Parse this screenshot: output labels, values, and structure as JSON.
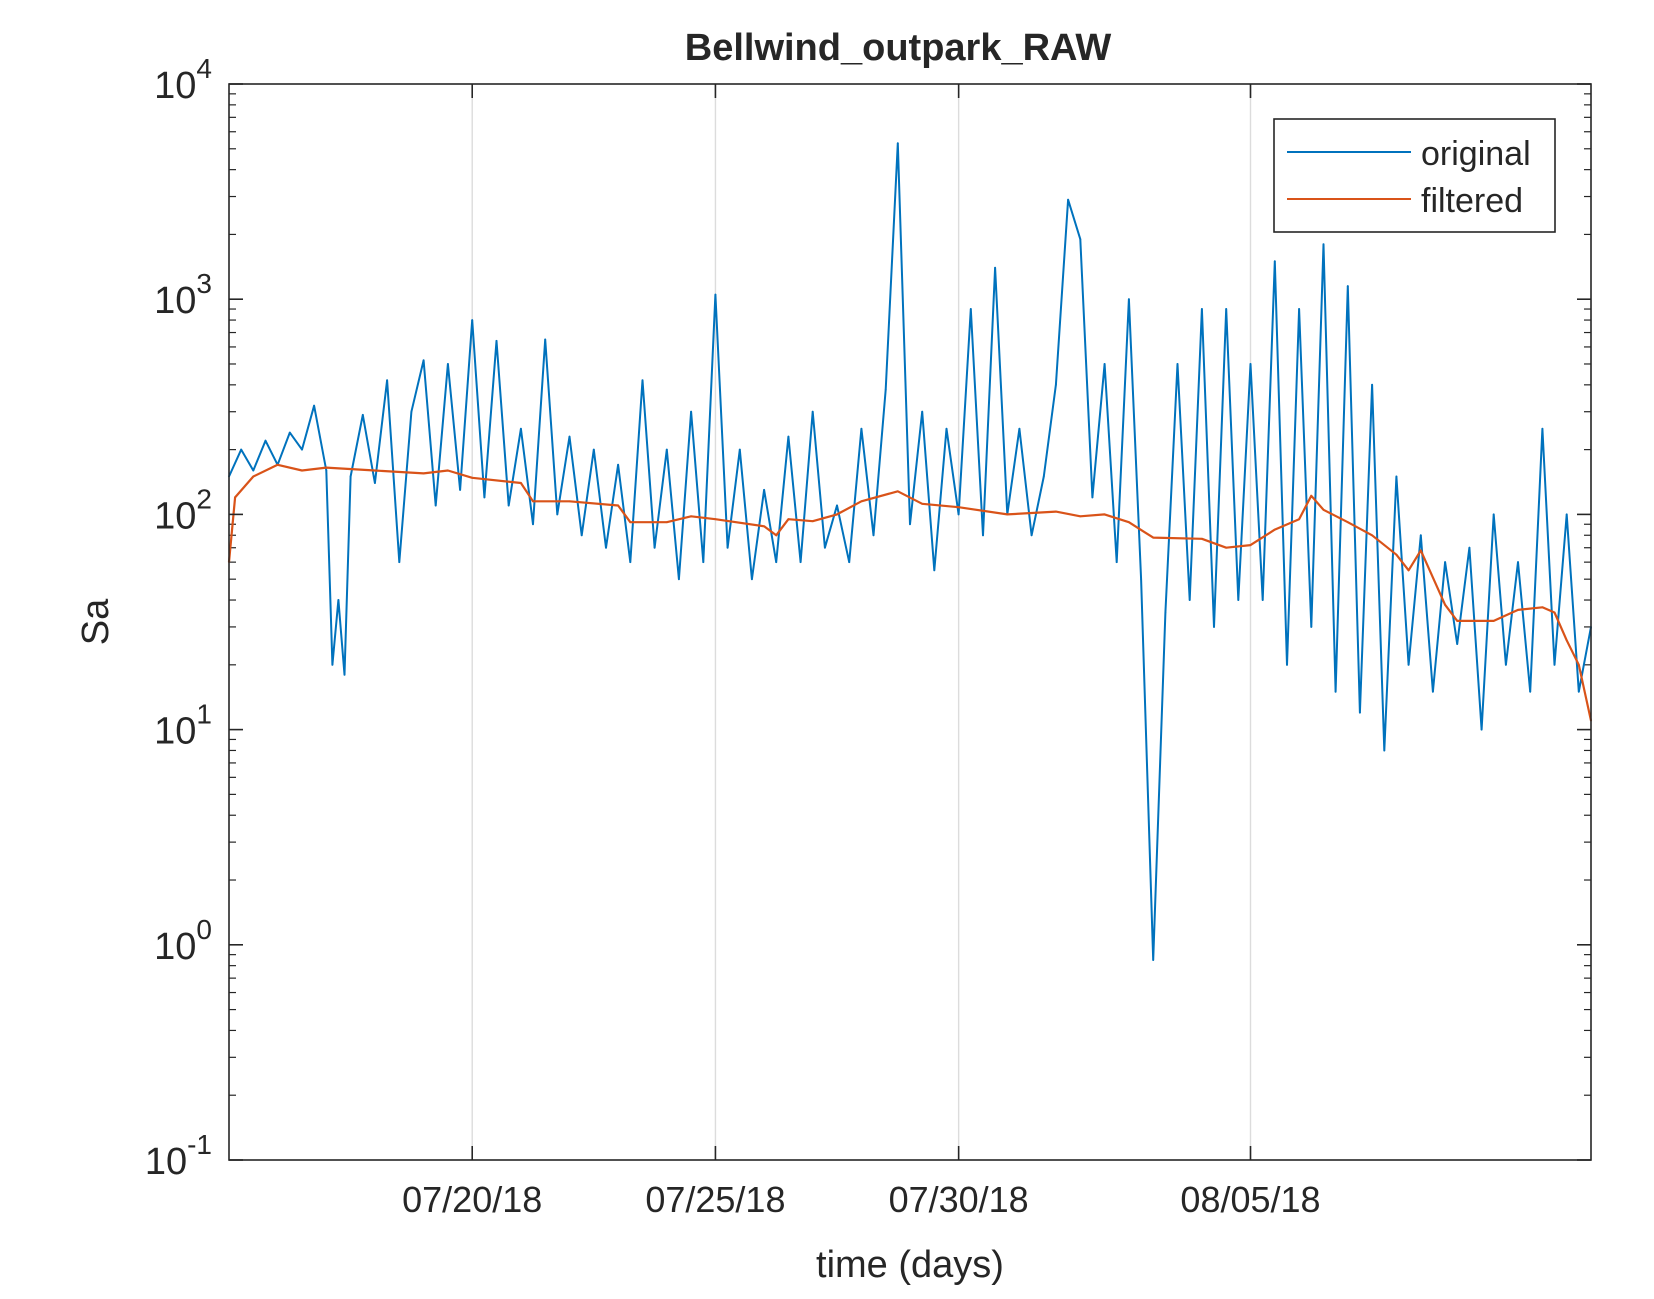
{
  "chart_data": {
    "type": "line",
    "title": "Bellwind_outpark_RAW",
    "xlabel": "time (days)",
    "ylabel": "Sa",
    "yscale": "log",
    "ylim": [
      0.1,
      10000
    ],
    "xlim": [
      "2018-07-15",
      "2018-08-12"
    ],
    "grid": "vertical lines at x ticks",
    "legend_position": "top-right",
    "x_ticks": [
      {
        "date": "2018-07-20",
        "label": "07/20/18"
      },
      {
        "date": "2018-07-25",
        "label": "07/25/18"
      },
      {
        "date": "2018-07-30",
        "label": "07/30/18"
      },
      {
        "date": "2018-08-05",
        "label": "08/05/18"
      }
    ],
    "y_ticks": [
      {
        "value": 0.1,
        "base": "10",
        "exp": "-1"
      },
      {
        "value": 1,
        "base": "10",
        "exp": "0"
      },
      {
        "value": 10,
        "base": "10",
        "exp": "1"
      },
      {
        "value": 100,
        "base": "10",
        "exp": "2"
      },
      {
        "value": 1000,
        "base": "10",
        "exp": "3"
      },
      {
        "value": 10000,
        "base": "10",
        "exp": "4"
      }
    ],
    "series": [
      {
        "name": "original",
        "color": "#0072BD",
        "points": [
          [
            "2018-07-15 00:00",
            150
          ],
          [
            "2018-07-15 06:00",
            200
          ],
          [
            "2018-07-15 12:00",
            160
          ],
          [
            "2018-07-15 18:00",
            220
          ],
          [
            "2018-07-16 00:00",
            170
          ],
          [
            "2018-07-16 06:00",
            240
          ],
          [
            "2018-07-16 12:00",
            200
          ],
          [
            "2018-07-16 18:00",
            320
          ],
          [
            "2018-07-17 00:00",
            160
          ],
          [
            "2018-07-17 03:00",
            20
          ],
          [
            "2018-07-17 06:00",
            40
          ],
          [
            "2018-07-17 09:00",
            18
          ],
          [
            "2018-07-17 12:00",
            150
          ],
          [
            "2018-07-17 18:00",
            290
          ],
          [
            "2018-07-18 00:00",
            140
          ],
          [
            "2018-07-18 06:00",
            420
          ],
          [
            "2018-07-18 12:00",
            60
          ],
          [
            "2018-07-18 18:00",
            300
          ],
          [
            "2018-07-19 00:00",
            520
          ],
          [
            "2018-07-19 06:00",
            110
          ],
          [
            "2018-07-19 12:00",
            500
          ],
          [
            "2018-07-19 18:00",
            130
          ],
          [
            "2018-07-20 00:00",
            800
          ],
          [
            "2018-07-20 06:00",
            120
          ],
          [
            "2018-07-20 12:00",
            640
          ],
          [
            "2018-07-20 18:00",
            110
          ],
          [
            "2018-07-21 00:00",
            250
          ],
          [
            "2018-07-21 06:00",
            90
          ],
          [
            "2018-07-21 12:00",
            650
          ],
          [
            "2018-07-21 18:00",
            100
          ],
          [
            "2018-07-22 00:00",
            230
          ],
          [
            "2018-07-22 06:00",
            80
          ],
          [
            "2018-07-22 12:00",
            200
          ],
          [
            "2018-07-22 18:00",
            70
          ],
          [
            "2018-07-23 00:00",
            170
          ],
          [
            "2018-07-23 06:00",
            60
          ],
          [
            "2018-07-23 12:00",
            420
          ],
          [
            "2018-07-23 18:00",
            70
          ],
          [
            "2018-07-24 00:00",
            200
          ],
          [
            "2018-07-24 06:00",
            50
          ],
          [
            "2018-07-24 12:00",
            300
          ],
          [
            "2018-07-24 18:00",
            60
          ],
          [
            "2018-07-25 00:00",
            1050
          ],
          [
            "2018-07-25 06:00",
            70
          ],
          [
            "2018-07-25 12:00",
            200
          ],
          [
            "2018-07-25 18:00",
            50
          ],
          [
            "2018-07-26 00:00",
            130
          ],
          [
            "2018-07-26 06:00",
            60
          ],
          [
            "2018-07-26 12:00",
            230
          ],
          [
            "2018-07-26 18:00",
            60
          ],
          [
            "2018-07-27 00:00",
            300
          ],
          [
            "2018-07-27 06:00",
            70
          ],
          [
            "2018-07-27 12:00",
            110
          ],
          [
            "2018-07-27 18:00",
            60
          ],
          [
            "2018-07-28 00:00",
            250
          ],
          [
            "2018-07-28 06:00",
            80
          ],
          [
            "2018-07-28 12:00",
            380
          ],
          [
            "2018-07-28 18:00",
            5300
          ],
          [
            "2018-07-29 00:00",
            90
          ],
          [
            "2018-07-29 06:00",
            300
          ],
          [
            "2018-07-29 12:00",
            55
          ],
          [
            "2018-07-29 18:00",
            250
          ],
          [
            "2018-07-30 00:00",
            100
          ],
          [
            "2018-07-30 06:00",
            900
          ],
          [
            "2018-07-30 12:00",
            80
          ],
          [
            "2018-07-30 18:00",
            1400
          ],
          [
            "2018-07-31 00:00",
            100
          ],
          [
            "2018-07-31 06:00",
            250
          ],
          [
            "2018-07-31 12:00",
            80
          ],
          [
            "2018-07-31 18:00",
            150
          ],
          [
            "2018-08-01 00:00",
            400
          ],
          [
            "2018-08-01 06:00",
            2900
          ],
          [
            "2018-08-01 12:00",
            1900
          ],
          [
            "2018-08-01 18:00",
            120
          ],
          [
            "2018-08-02 00:00",
            500
          ],
          [
            "2018-08-02 06:00",
            60
          ],
          [
            "2018-08-02 12:00",
            1000
          ],
          [
            "2018-08-02 18:00",
            50
          ],
          [
            "2018-08-03 00:00",
            0.85
          ],
          [
            "2018-08-03 06:00",
            35
          ],
          [
            "2018-08-03 12:00",
            500
          ],
          [
            "2018-08-03 18:00",
            40
          ],
          [
            "2018-08-04 00:00",
            900
          ],
          [
            "2018-08-04 06:00",
            30
          ],
          [
            "2018-08-04 12:00",
            900
          ],
          [
            "2018-08-04 18:00",
            40
          ],
          [
            "2018-08-05 00:00",
            500
          ],
          [
            "2018-08-05 06:00",
            40
          ],
          [
            "2018-08-05 12:00",
            1500
          ],
          [
            "2018-08-05 18:00",
            20
          ],
          [
            "2018-08-06 00:00",
            900
          ],
          [
            "2018-08-06 06:00",
            30
          ],
          [
            "2018-08-06 12:00",
            1800
          ],
          [
            "2018-08-06 18:00",
            15
          ],
          [
            "2018-08-07 00:00",
            1150
          ],
          [
            "2018-08-07 06:00",
            12
          ],
          [
            "2018-08-07 12:00",
            400
          ],
          [
            "2018-08-07 18:00",
            8
          ],
          [
            "2018-08-08 00:00",
            150
          ],
          [
            "2018-08-08 06:00",
            20
          ],
          [
            "2018-08-08 12:00",
            80
          ],
          [
            "2018-08-08 18:00",
            15
          ],
          [
            "2018-08-09 00:00",
            60
          ],
          [
            "2018-08-09 06:00",
            25
          ],
          [
            "2018-08-09 12:00",
            70
          ],
          [
            "2018-08-09 18:00",
            10
          ],
          [
            "2018-08-10 00:00",
            100
          ],
          [
            "2018-08-10 06:00",
            20
          ],
          [
            "2018-08-10 12:00",
            60
          ],
          [
            "2018-08-10 18:00",
            15
          ],
          [
            "2018-08-11 00:00",
            250
          ],
          [
            "2018-08-11 06:00",
            20
          ],
          [
            "2018-08-11 12:00",
            100
          ],
          [
            "2018-08-11 18:00",
            15
          ],
          [
            "2018-08-12 00:00",
            30
          ]
        ]
      },
      {
        "name": "filtered",
        "color": "#D95319",
        "points": [
          [
            "2018-07-15 00:00",
            60
          ],
          [
            "2018-07-15 03:00",
            120
          ],
          [
            "2018-07-15 12:00",
            150
          ],
          [
            "2018-07-16 00:00",
            170
          ],
          [
            "2018-07-16 12:00",
            160
          ],
          [
            "2018-07-17 00:00",
            165
          ],
          [
            "2018-07-18 00:00",
            160
          ],
          [
            "2018-07-19 00:00",
            155
          ],
          [
            "2018-07-19 12:00",
            160
          ],
          [
            "2018-07-20 00:00",
            148
          ],
          [
            "2018-07-21 00:00",
            140
          ],
          [
            "2018-07-21 06:00",
            115
          ],
          [
            "2018-07-22 00:00",
            115
          ],
          [
            "2018-07-23 00:00",
            110
          ],
          [
            "2018-07-23 06:00",
            92
          ],
          [
            "2018-07-24 00:00",
            92
          ],
          [
            "2018-07-24 12:00",
            98
          ],
          [
            "2018-07-25 00:00",
            95
          ],
          [
            "2018-07-26 00:00",
            88
          ],
          [
            "2018-07-26 06:00",
            80
          ],
          [
            "2018-07-26 12:00",
            95
          ],
          [
            "2018-07-27 00:00",
            93
          ],
          [
            "2018-07-27 12:00",
            100
          ],
          [
            "2018-07-28 00:00",
            115
          ],
          [
            "2018-07-28 18:00",
            128
          ],
          [
            "2018-07-29 06:00",
            112
          ],
          [
            "2018-07-30 00:00",
            108
          ],
          [
            "2018-07-31 00:00",
            100
          ],
          [
            "2018-08-01 00:00",
            103
          ],
          [
            "2018-08-01 12:00",
            98
          ],
          [
            "2018-08-02 00:00",
            100
          ],
          [
            "2018-08-02 12:00",
            92
          ],
          [
            "2018-08-03 00:00",
            78
          ],
          [
            "2018-08-04 00:00",
            77
          ],
          [
            "2018-08-04 12:00",
            70
          ],
          [
            "2018-08-05 00:00",
            72
          ],
          [
            "2018-08-05 12:00",
            85
          ],
          [
            "2018-08-06 00:00",
            95
          ],
          [
            "2018-08-06 06:00",
            122
          ],
          [
            "2018-08-06 12:00",
            105
          ],
          [
            "2018-08-07 00:00",
            92
          ],
          [
            "2018-08-07 12:00",
            80
          ],
          [
            "2018-08-08 00:00",
            65
          ],
          [
            "2018-08-08 06:00",
            55
          ],
          [
            "2018-08-08 12:00",
            68
          ],
          [
            "2018-08-09 00:00",
            38
          ],
          [
            "2018-08-09 06:00",
            32
          ],
          [
            "2018-08-10 00:00",
            32
          ],
          [
            "2018-08-10 12:00",
            36
          ],
          [
            "2018-08-11 00:00",
            37
          ],
          [
            "2018-08-11 06:00",
            35
          ],
          [
            "2018-08-11 12:00",
            26
          ],
          [
            "2018-08-11 18:00",
            20
          ],
          [
            "2018-08-12 00:00",
            11
          ]
        ]
      }
    ]
  }
}
